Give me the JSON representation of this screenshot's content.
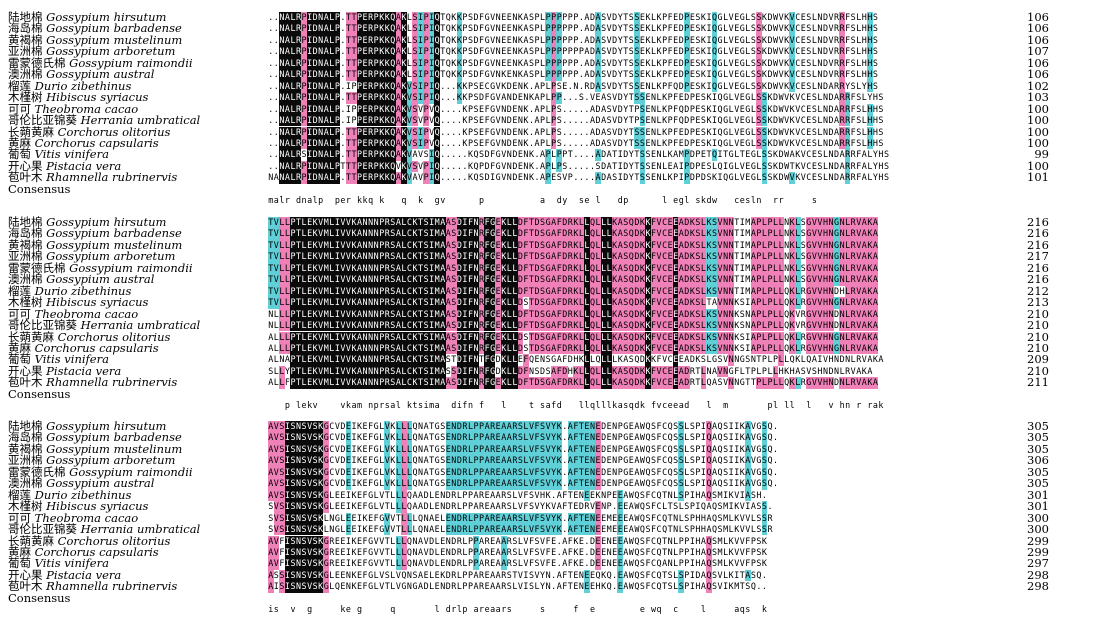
{
  "species": [
    {
      "cn": "陆地棉",
      "latin": "Gossypium hirsutum"
    },
    {
      "cn": "海岛棉",
      "latin": "Gossypium barbadense"
    },
    {
      "cn": "黄褐棉",
      "latin": "Gossypium mustelinum"
    },
    {
      "cn": "亚洲棉",
      "latin": "Gossypium arboretum"
    },
    {
      "cn": "雷蒙德氏棉",
      "latin": "Gossypium raimondii"
    },
    {
      "cn": "澳洲棉",
      "latin": "Gossypium austral"
    },
    {
      "cn": "榴莲",
      "latin": "Durio zibethinus"
    },
    {
      "cn": "木槿树",
      "latin": "Hibiscus syriacus"
    },
    {
      "cn": "可可",
      "latin": "Theobroma cacao"
    },
    {
      "cn": "哥伦比亚锦葵",
      "latin": "Herrania umbratical"
    },
    {
      "cn": "长蒴黄麻",
      "latin": "Corchorus olitorius"
    },
    {
      "cn": "黄麻",
      "latin": "Corchorus capsularis"
    },
    {
      "cn": "葡萄",
      "latin": "Vitis vinifera"
    },
    {
      "cn": "开心果",
      "latin": "Pistacia vera"
    },
    {
      "cn": "苞叶木",
      "latin": "Rhamnella rubrinervis"
    }
  ],
  "consensus_label": "Consensus",
  "blocks": [
    {
      "end_numbers": [
        "106",
        "106",
        "106",
        "107",
        "106",
        "106",
        "102",
        "103",
        "100",
        "100",
        "100",
        "100",
        "99",
        "100",
        "101"
      ],
      "consensus": "malr dnalp  per kkq k   q  k  gv      p          a  dy  se l   dp      l egl skdw   cesln  rr     s",
      "seqs": [
        "..NALRPIDNALP.TTPERPKKQAKLSIPIQTQKKPSDFGVNEENKASPLPPPPPP.ADASVDYTSSEKLKPFEDPESKIQGLVEGLSSKDWVKVCESLNDVRRFSLHHS",
        "..NALRPIDNALP.TTPERPKKQAKLSIPIQTQKKPSDFGVNEENKASPLPPPPPP.ADASVDYTSSEKLKPFEDPESKIQGLVEGLSSKDWVKVCESLNDVRRFSLHHS",
        "..NALRPIDNALP.TTPERPKKQAKLSIPIQTQKKPSDFGVNEENKASPLPPPPPP.ADASVDYTSSEKLKPFEDPESKIQGLVEGLSSKDWVKVCESLNDVRRFSLHHS",
        "..NALRPIDNALP.TTPERPKKQAKLSIPIQTQKKPSDFGVNEENKASPLPPPPPPPADASVDYTSSEKLKPFEDPESKIQGLVEGLSSKDWVKVCESLNDVRRFSLHHS",
        "..NALRPIDNALP.TTPERPKKQAKLSIPIQTQKKPSDFGVNEENKASPLPPPPPP.ADASVDYTSSEKLKPFEDPESKIQGLVEGLSSKDWVKVCESLNDVRRFSLHHS",
        "..NALRPIDNALP.TTPERPKKQAKLSIPIQTQKKPSDFGVNKENKASPLPPPPPP.ADASVDYTSSEKLKPFEDPESKIQGLVEGLSSKDWVKVCESLNDVRRFSLHHS",
        "..NALRPIDNALP.IPPERPKKQAKVSIPIQ...KKPSECGVKDENK.APLPSE.N.RDASVDYTSSENLKPFQDPESKIQGLVEGLSSKDWVKVCESLNDARRYSLYHS",
        "..NALRPIDNALP.TTPERPKKQAKVSIPIQ...KKPSDFGVANDENKAPLPP...S.VEASVDYTSSENLKPFEDPESKIQGLVEGLSSKDWVKVCESLNDARRFSLYHS",
        "..NALRPIDNALP.IPPERPKKQAKVSVPVQ....KPSEFGVNDENK.APLPS.....ADASVDYTPSENLKPFQDPESKIQGLVEGLSSKDWVKVCESLNDARRFSLHHS",
        "..NALRPIDNALP.IPPERPKKQAKVSVPVQ....KPSEFGVNDENK.APLPS.....ADASVDYTPSENLKPFQDPESKIQGLVEGLSSKDWVKVCESLNDARRFSLHHS",
        "..NALRPIDNALP.TTPERPKKQAKVSIPVQ....KPSEFGVNDENK.APLPS.....ADASVDYTSSENLKPFEDPESKIQGLVEGLSSKDWVKVCESLNDARRFSLHHS",
        "..NALRPIDNALP.TTPERPKKQAKVSIPVQ....KPSEFGVNDENK.APLPS.....ADASVDYTSSENLKPFEDPESKIQGLVEGLSSKDWVKVCESLNDARRFSLHHS",
        "..NALRSIDNALP.TTPERPKKQAKVAVSIQ.....KQSDFGVNDENK.APLPPT....ADATIDYTSSENLKAMPDPETQITGLTEGLSSKDWAKVCESLNDARRFALYHS",
        "..NALRPIDNALPTTTPERPKKQVKVSVPIQ.....KQPDFGVNDENK.APLPS.....SDATIDYTSSENLEAIPDPESLQIGLVEGLSSKDWTKVCESLNDARRFALYHS",
        "NANALRPIDNALP.TTPERPKKQAKVAVPIQ.....KQSDIGVNDENK.APESVP....ADASIDYTSSENLKPIPDPDSKIQGLVEGLSSKDWVKVCESLNDARRFALYHS"
      ]
    },
    {
      "end_numbers": [
        "216",
        "216",
        "216",
        "217",
        "216",
        "216",
        "212",
        "213",
        "210",
        "210",
        "210",
        "210",
        "209",
        "210",
        "211"
      ],
      "consensus": "   p lekv    vkam nprsal ktsima  difn f   l    t safd   llqlllkasqdk fvceead   l  m       pl ll  l   v hn r rak",
      "seqs": [
        "TVLLPTLEKVMLIVVKANNNPRSALCKTSIMAASDIFNRFGEKLLDFTDSGAFDRKLLQLLLKASQDKKFVCEEADKSLKSVNNTIMAPLPLLNKLSGVVHNGNLRVAKA",
        "TVLLPTLEKVMLIVVKANNNPRSALCKTSIMAASDIFNRFGEKLLDFTDSGAFDRKLLQLLLKASQDKKFVCEEADKSLKSVNNTIMAPLPLLNKLSGVVHNGNLRVAKA",
        "TVLLPTLEKVMLIVVKANNNPRSALCKTSIMAASDIFNRFGEKLLDFTDSGAFDRKLLQLLLKASQDKKFVCEEADKSLKSVNNTIMAPLPLLNKLSGVVHNGNLRVAKA",
        "TVLLPTLEKVMLIVVKANNNPRSALCKTSIMAASDIFNRFGEKLLDFTDSGAFDRKLLQLLLKASQDKKFVCEEADKSLKSVNNTIMAPLPLLNKLSGVVHNGNLRVAKA",
        "TVLLPTLEKVMLIVVKANNNPRSALCKTSIMAASDIFNRFGEKLLDFTDSGAFDRKLLQLLLKASQDKKFVCEEADKSLKSVNNTIMAPLPLLNKLSGVVHNGNLRVAKA",
        "TVLLPTLEKVMLIVVKANNNPRSALCKTSIMAASDIFNRFGEKLLDFTDSGAFDRKLLQLLLKASQDKKFVCEEADKSLKSVNNTIMAPLPLLNKLSGVVHNGNLRVAKA",
        "TVLLPTLEKVMLIVVKANNNPRSALCKTSIMAASDIFNRFGEKLLDFTDSGAFDRKLLQLLLKASQDKKFVCEEADKSLKSVNNTIMAPLPLLQKLRGVVHNDHLRVAKA",
        "TVLLPTLEKVMLIVVKANNNPRSALCKTSIMAASDIFNRFGEKLLDSTDSGAFDRKLLQLLLKASQDKKFVCEEADKSLTAVNNKSIAPLPLLQKLRGVVHNGNLRVAKA",
        "NLLLPTLEKVMLIVVKANNNPRSALCKTSIMAASDIFNRFGEKLLDFTDSGAFDRKLLQLLLKASQDKKFVCEEADKSLKSVNNKSNAPLPLLQKVRGVVHNDNLRVAKA",
        "NLLLPTLEKVMLIVVKANNNPRSALCKTSIMAASDIFNRFGEKLLDFTDSGAFDRKLLQLLLKASQDKKFVCEEADKSLKSVNNKSNAPLPLLQKVRGVVHNDNLRVAKA",
        "ALLLPTLEKVMLIVVKANNNPRSALCKTSIMAASDIFNRFGEKLLDSTDSGAFDRKLLQLLLKASQDKKFVCEEADKSLKSVNNKSIAPLPLLQKLRGVVHNGNLRVAKA",
        "ALLLPTLEKVMLIVVKANNNPRSALCKTSIMAASDIFNRFGEKLLDSTDSGAFDRKLLQLLLKASQDKKFVCEEADKSLKSVNNKSIAPLPLLQKLRGVVHNGNLRVAKA",
        "ALNAPTLEKVMLIVVKANNNPRSALCKTSIMASTDIFNTFGDKLLEFQENSGAFDHKLLQLLLKASQDKKFVCEEADKSLGSVNNGSNTPLPLLQKLQAIVHNDNLRVAKA",
        "SLLYPTLEKVMLIVVKANNNPRSALCKTSIMASSDIFNRFGDKLLDFNSDSAFDHKLLQLLLKASQDKKFVCEEADRTLNAVNGFLTPLPLLHKHASVSHNDNLRVAKA",
        "ALLFPTLEKVMLIVVKANNNPRSALCKTSIMAASDIFNRFGEKLLDFTDSGAFDRKLLQLLLKASQDKKFVCEEADRTLQASVNNGTTPLPLLQKLRGVVHNDNLRVAKA"
      ]
    },
    {
      "end_numbers": [
        "305",
        "305",
        "305",
        "306",
        "305",
        "305",
        "301",
        "301",
        "300",
        "300",
        "299",
        "299",
        "297",
        "298",
        "298"
      ],
      "consensus": "is  v  g     ke g     q       l drlp areaars     s     f  e        e wq  c    l     aqs  k",
      "seqs": [
        "AVSISNSVSKGCVDEIKEFGLVKLLLQNATGSENDRLPPAREAARSLVFSVYK.AFTENEDENPGEAWQSFCQSSLSPIQAQSIIKAVGSQ.",
        "AVSISNSVSKGCVDEIKEFGLVKLLLQNATGSENDRLPPAREAARSLVFSVYK.AFTENEDENPGEAWQSFCQSSLSPIQAQSIIKAVGSQ.",
        "AVSISNSVSKGCVDEIKEFGLVKLLLQNATGSENDRLPPAREAARSLVFSVYK.AFTENEDENPGEAWQSFCQSSLSPIQAQSIIKAVGSQ.",
        "AVSISNSVSKGCVDEIKEFGLVKLLLQNATGSENDRLPPAREAARSLVFSVYK.AFTENEDENPGEAWQSFCQSSLSPIQAQSIIKAVGSQ.",
        "AVSISNSVSKGCVDEIKEFGLVKLLLQNATGSENDRLPPAREAARSLVFSVYK.AFTENEDENPGEAWQSFCQSSLSPIQAQSIIKAVGSQ.",
        "AVSISNSVSKGCVDEIKEFGLVKLLLQNATGSENDRLPPAREAARSLVFSVYK.AFTENEDENPGEAWQSFCQSSLSPIQAQSIIKAVGSQ.",
        "AVSISNSVSKGLEEIKEFGLVTLLLQAADLENDRLPPAREAARSLVFSVHK.AFTENEEKNPEEAWQSFCQTNLSPIHAQSMIKVIASH.",
        "SVSISNSVSKGLEEIKEFGLVTLLLQAADLENDRLPPAREAARSLVFSVYKVAFTEDRVENP.EEAWQSFCLTSLSPIQAQSMIKVIASS.",
        "SVSISNSVSKLNGLEEIKEFGVVTLLLQNAELENDRLPPAREAARSLVFSVYK.AFTENEEMEEEAWQSFCQTNLSPHHAQSMLKVVLSSR",
        "SVSISNSVSKLNGLEEIKEFGVVTLLLQNAELENDRLPPAREAARSLVFSVYK.AFTENEEMEEEAWQSFCQTNLSPHHAQSMLKVVLSSR",
        "AVFISNSVSKGREEIKEFGVVTLLLQNAVDLENDRLPPAREAARSLVFSVFE.AFKE.DEENEEAWQSFCQTNLPPIHAQSMLKVVFPSK",
        "AVFISNSVSKGREEIKEFGVVTLLLQNAVDLENDRLPPAREAARSLVFSVFE.AFKE.DEENEEAWQSFCQTNLPPIHAQSMLKVVFPSK",
        "AVFISNSVSKGREEIKEFGVVTLLLQNAVDLENDRLPPAREAARSLVFSVFE.AFKE.DEENEEAWQSFCQANLPPIHAQSMLKVVFPSK",
        "ASSISNSVSKGLEENKEFGLVSLVQNSAELEKDRLPPAREAARSTVISVYN.AFTENEEQKQ.EAWQSFCQTSLSPIDAQSVLKITASQ.",
        "AISISNSVSKGLQENKEFGLVTLVGNGADLENDRLPPAREAARSLVISLYN.AFTENEEHKQ.EAWQSFCQTSLSPIHAQSVIKMTSQ.."
      ]
    }
  ]
}
